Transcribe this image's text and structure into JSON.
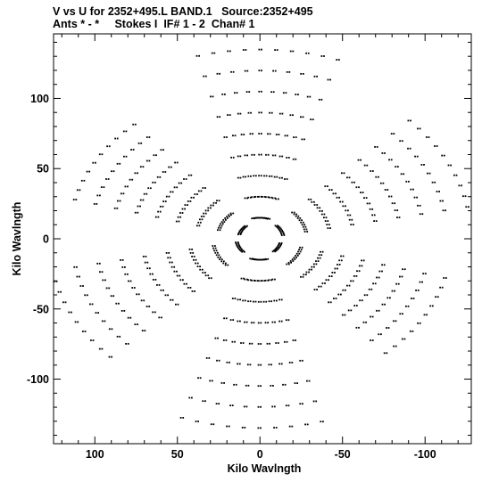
{
  "header": {
    "line1": "V vs U for 2352+495.L BAND.1   Source:2352+495",
    "line2": "Ants * - *     Stokes I  IF# 1 - 2  Chan# 1"
  },
  "chart_data": {
    "type": "scatter",
    "title": "V vs U for 2352+495.L BAND.1   Source:2352+495",
    "subtitle": "Ants * - *     Stokes I  IF# 1 - 2  Chan# 1",
    "xlabel": "Kilo Wavlngth",
    "ylabel": "Kilo Wavlngth",
    "xlim": [
      125,
      -128
    ],
    "ylim": [
      -146,
      146
    ],
    "x_ticks": [
      100,
      50,
      0,
      -50,
      -100
    ],
    "y_ticks": [
      100,
      50,
      0,
      -50,
      -100
    ],
    "x_tick_labels": [
      "100",
      "50",
      "0",
      "-50",
      "-100"
    ],
    "y_tick_labels": [
      "100",
      "50",
      "0",
      "-50",
      "-100"
    ],
    "grid": false,
    "marker_color": "#000000",
    "pattern": {
      "description": "uv-coverage: six-armed star of short elliptical arc tracks, point-symmetric about origin",
      "arm_angles_deg": [
        92,
        152,
        212,
        272,
        332,
        32
      ],
      "arm_max_radius": [
        145,
        128,
        116,
        145,
        128,
        116
      ],
      "tracks_per_arm": 9,
      "hour_angle_span_deg": 34,
      "v_compression": 0.93
    }
  }
}
